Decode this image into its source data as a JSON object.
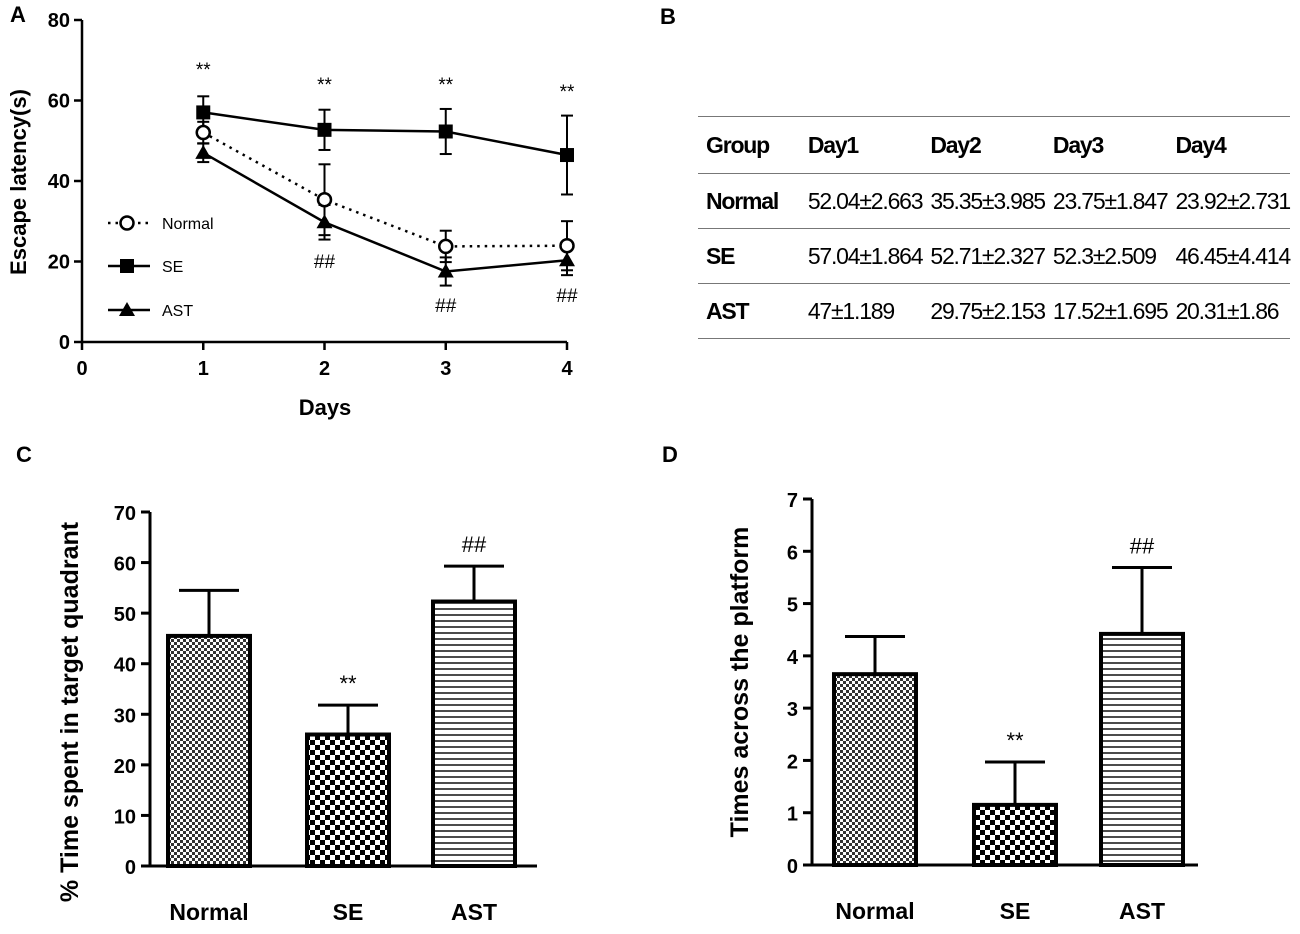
{
  "panels": {
    "a": "A",
    "b": "B",
    "c": "C",
    "d": "D"
  },
  "chart_data": [
    {
      "id": "A",
      "type": "line",
      "xlabel": "Days",
      "ylabel": "Escape latency(s)",
      "xlim": [
        0,
        4
      ],
      "ylim": [
        0,
        80
      ],
      "xticks": [
        0,
        1,
        2,
        3,
        4
      ],
      "yticks": [
        0,
        20,
        40,
        60,
        80
      ],
      "x": [
        1,
        2,
        3,
        4
      ],
      "series": [
        {
          "name": "Normal",
          "marker": "open-circle",
          "line": "dotted",
          "values": [
            52.04,
            35.35,
            23.75,
            23.92
          ],
          "errors": [
            2.663,
            8.8,
            3.9,
            6.1
          ]
        },
        {
          "name": "SE",
          "marker": "square",
          "line": "solid",
          "values": [
            57.04,
            52.71,
            52.3,
            46.45
          ],
          "errors": [
            4.0,
            5.0,
            5.6,
            9.8
          ]
        },
        {
          "name": "AST",
          "marker": "triangle",
          "line": "solid",
          "values": [
            47,
            29.75,
            17.52,
            20.31
          ],
          "errors": [
            2.3,
            4.3,
            3.5,
            3.7
          ]
        }
      ],
      "legend": [
        "Normal",
        "SE",
        "AST"
      ],
      "annotations": {
        "top": [
          "**",
          "**",
          "**",
          "**"
        ],
        "bottom": [
          "",
          "##",
          "##",
          "##"
        ]
      }
    },
    {
      "id": "C",
      "type": "bar",
      "categories": [
        "Normal",
        "SE",
        "AST"
      ],
      "values": [
        45.5,
        26,
        52.3
      ],
      "errors": [
        9.0,
        5.8,
        7.0
      ],
      "patterns": [
        "dense-check",
        "checker",
        "horizontal-lines"
      ],
      "ylabel": "% Time spent in target quadrant",
      "ylim": [
        0,
        70
      ],
      "yticks": [
        0,
        10,
        20,
        30,
        40,
        50,
        60,
        70
      ],
      "annotations": [
        "",
        "**",
        "##"
      ]
    },
    {
      "id": "D",
      "type": "bar",
      "categories": [
        "Normal",
        "SE",
        "AST"
      ],
      "values": [
        3.65,
        1.15,
        4.42
      ],
      "errors": [
        0.72,
        0.82,
        1.27
      ],
      "patterns": [
        "dense-check",
        "checker",
        "horizontal-lines"
      ],
      "ylabel": "Times across the platform",
      "ylim": [
        0,
        7
      ],
      "yticks": [
        0,
        1,
        2,
        3,
        4,
        5,
        6,
        7
      ],
      "annotations": [
        "",
        "**",
        "##"
      ]
    }
  ],
  "table": {
    "headers": [
      "Group",
      "Day1",
      "Day2",
      "Day3",
      "Day4"
    ],
    "rows": [
      [
        "Normal",
        "52.04±2.663",
        "35.35±3.985",
        "23.75±1.847",
        "23.92±2.731"
      ],
      [
        "SE",
        "57.04±1.864",
        "52.71±2.327",
        "52.3±2.509",
        "46.45±4.414"
      ],
      [
        "AST",
        "47±1.189",
        "29.75±2.153",
        "17.52±1.695",
        "20.31±1.86"
      ]
    ]
  }
}
